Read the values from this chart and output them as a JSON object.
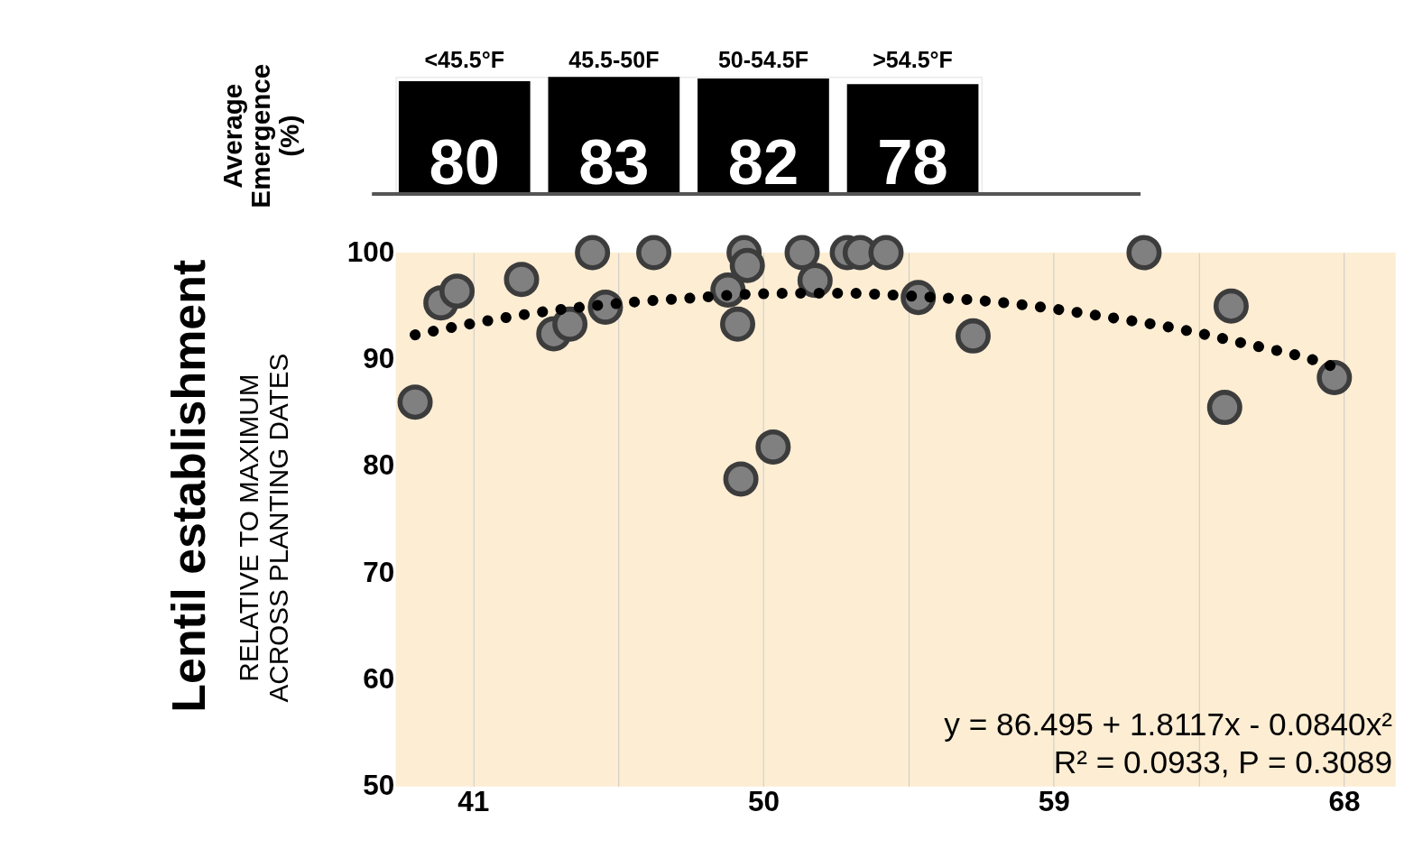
{
  "chart_data": [
    {
      "type": "bar",
      "ylabel": "Average\nEmergence\n(%)",
      "categories": [
        "<45.5°F",
        "45.5-50F",
        "50-54.5F",
        ">54.5°F"
      ],
      "values": [
        80,
        83,
        82,
        78
      ],
      "color": "#000000",
      "data_labels": true,
      "tick_labels": "x"
    },
    {
      "type": "scatter",
      "title": "Lentil establishment",
      "ylabel": "RELATIVE TO MAXIMUM\nACROSS PLANTING DATES",
      "xlim": [
        38.6,
        69.6
      ],
      "xticks": [
        41,
        {
          "value": 45.5,
          "label": null
        },
        50,
        {
          "value": 54.5,
          "label": null
        },
        59,
        {
          "value": 63.5,
          "label": null
        },
        68
      ],
      "ylim": [
        50,
        100
      ],
      "yticks": [
        50,
        60,
        70,
        80,
        90,
        100
      ],
      "grid": "x",
      "series": [
        {
          "type": "scatter",
          "color": "#808080",
          "marker": "circle",
          "x": [
            39.2,
            40.0,
            40.5,
            42.5,
            43.5,
            44.0,
            44.7,
            45.1,
            46.6,
            48.9,
            49.2,
            49.4,
            49.5,
            49.3,
            50.3,
            51.2,
            51.6,
            52.6,
            53.0,
            53.8,
            54.8,
            56.5,
            61.8,
            64.5,
            64.3,
            67.7
          ],
          "values": [
            86.0,
            95.3,
            96.4,
            97.5,
            92.4,
            93.3,
            100,
            94.9,
            100,
            96.5,
            93.3,
            100,
            98.8,
            78.8,
            81.8,
            100,
            97.4,
            100,
            100,
            100,
            95.8,
            92.2,
            100,
            95.0,
            85.5,
            88.3
          ]
        },
        {
          "type": "line",
          "color": "#000000",
          "line_style": "dotted",
          "marker": "none",
          "x": [
            39.2,
            41.4,
            43.5,
            45.0,
            46.5,
            48.0,
            49.5,
            51.1,
            52.6,
            54.2,
            54.8,
            57.8,
            60.6,
            62.8,
            64.9,
            67.0,
            67.6
          ],
          "values": [
            92.3,
            93.6,
            94.6,
            95.1,
            95.5,
            95.8,
            96.1,
            96.2,
            96.2,
            96.0,
            95.9,
            95.2,
            94.0,
            92.9,
            91.5,
            90.0,
            89.4
          ]
        }
      ],
      "annotations": [
        "y = 86.495 + 1.8117x - 0.0840x²",
        "R² = 0.0933, P = 0.3089"
      ]
    }
  ]
}
